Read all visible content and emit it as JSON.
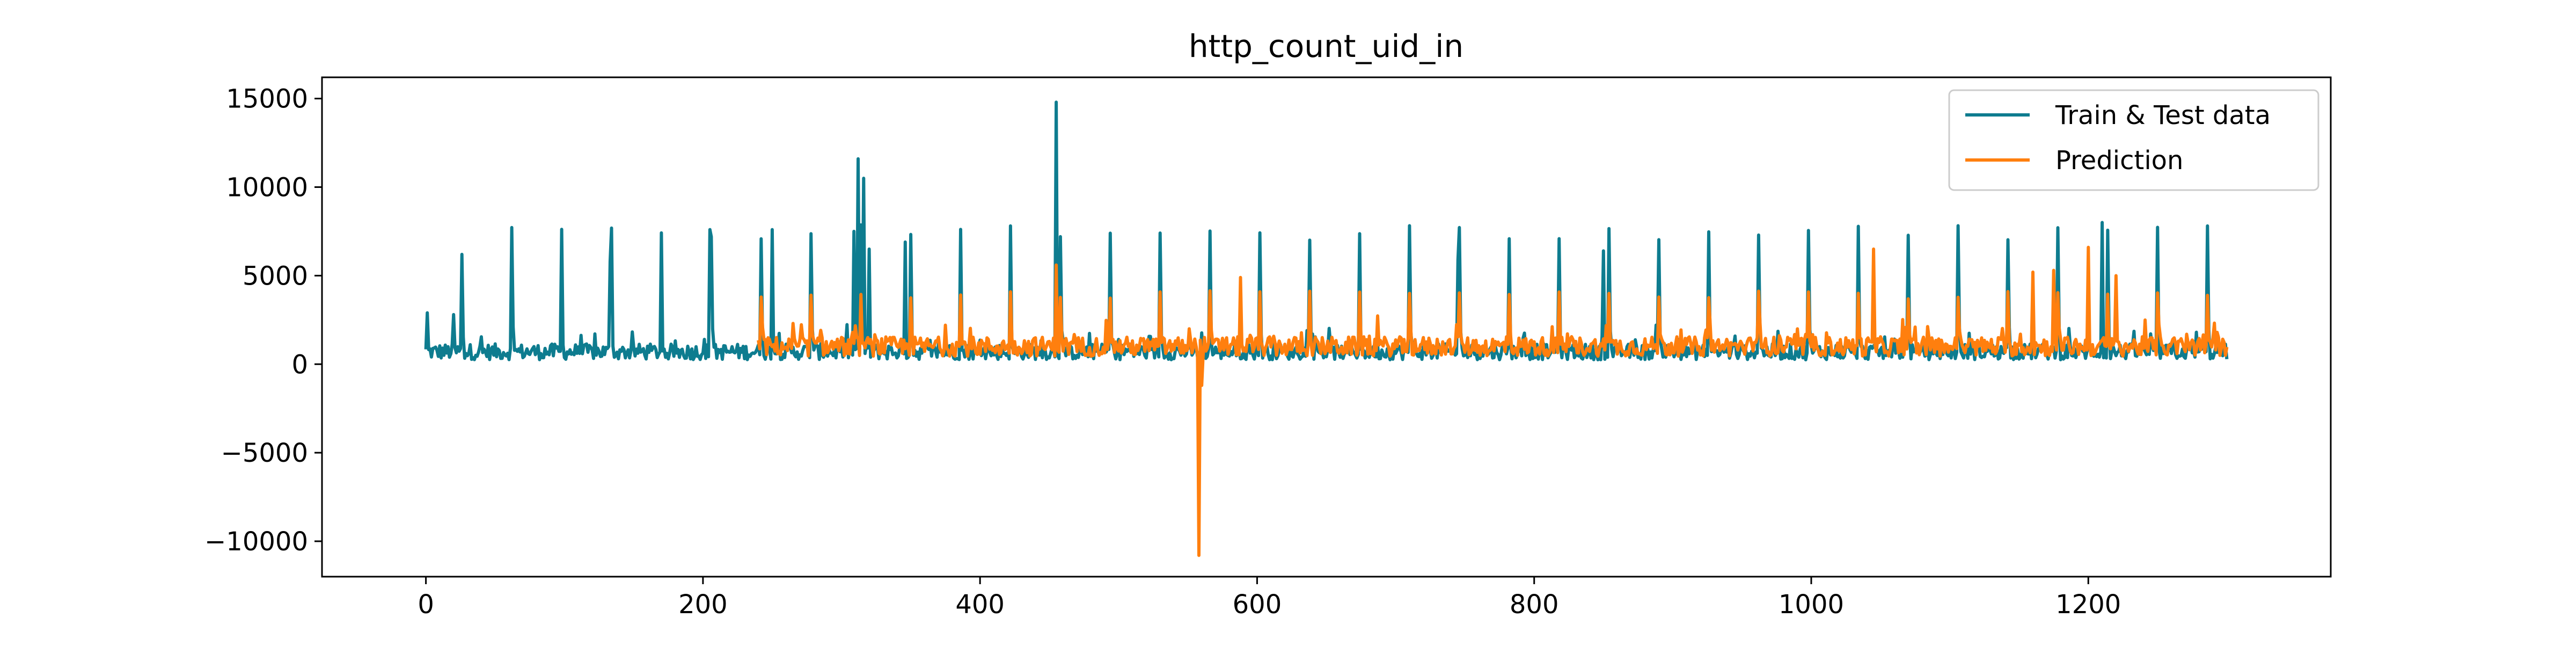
{
  "chart_data": {
    "type": "line",
    "title": "http_count_uid_in",
    "xlabel": "",
    "ylabel": "",
    "xlim": [
      -75,
      1375
    ],
    "ylim": [
      -12000,
      16200
    ],
    "x_ticks": [
      0,
      200,
      400,
      600,
      800,
      1000,
      1200
    ],
    "x_tick_labels": [
      "0",
      "200",
      "400",
      "600",
      "800",
      "1000",
      "1200"
    ],
    "y_ticks": [
      -10000,
      -5000,
      0,
      5000,
      10000,
      15000
    ],
    "y_tick_labels": [
      "−10000",
      "−5000",
      "0",
      "5000",
      "10000",
      "15000"
    ],
    "grid": false,
    "legend_position": "top-right",
    "series": [
      {
        "name": "Train & Test data",
        "color": "#0e7c8f",
        "generator": {
          "x_start": 0,
          "x_end": 1300,
          "baseline": 700,
          "noise": 450,
          "weekly_period": 36,
          "weekly_phase": 26,
          "weekly_peak": 7600,
          "spikes": [
            {
              "x": 1,
              "y": 2900
            },
            {
              "x": 20,
              "y": 2800
            },
            {
              "x": 26,
              "y": 6200
            },
            {
              "x": 133,
              "y": 5800
            },
            {
              "x": 205,
              "y": 7600
            },
            {
              "x": 250,
              "y": 7600
            },
            {
              "x": 309,
              "y": 7500
            },
            {
              "x": 312,
              "y": 11600
            },
            {
              "x": 316,
              "y": 10500
            },
            {
              "x": 320,
              "y": 6500
            },
            {
              "x": 346,
              "y": 6900
            },
            {
              "x": 455,
              "y": 14800
            },
            {
              "x": 745,
              "y": 5900
            },
            {
              "x": 850,
              "y": 6400
            },
            {
              "x": 1210,
              "y": 8000
            }
          ]
        }
      },
      {
        "name": "Prediction",
        "color": "#ff7f0e",
        "generator": {
          "x_start": 240,
          "x_end": 1300,
          "baseline": 1000,
          "noise": 550,
          "weekly_period": 36,
          "weekly_phase": 26,
          "weekly_peak": 4000,
          "spikes": [
            {
              "x": 455,
              "y": 5600
            },
            {
              "x": 558,
              "y": -10800
            },
            {
              "x": 560,
              "y": -1200
            },
            {
              "x": 588,
              "y": 4900
            },
            {
              "x": 1045,
              "y": 6500
            },
            {
              "x": 1160,
              "y": 5200
            },
            {
              "x": 1175,
              "y": 5300
            },
            {
              "x": 1200,
              "y": 6600
            },
            {
              "x": 1220,
              "y": 5000
            }
          ]
        }
      }
    ]
  }
}
